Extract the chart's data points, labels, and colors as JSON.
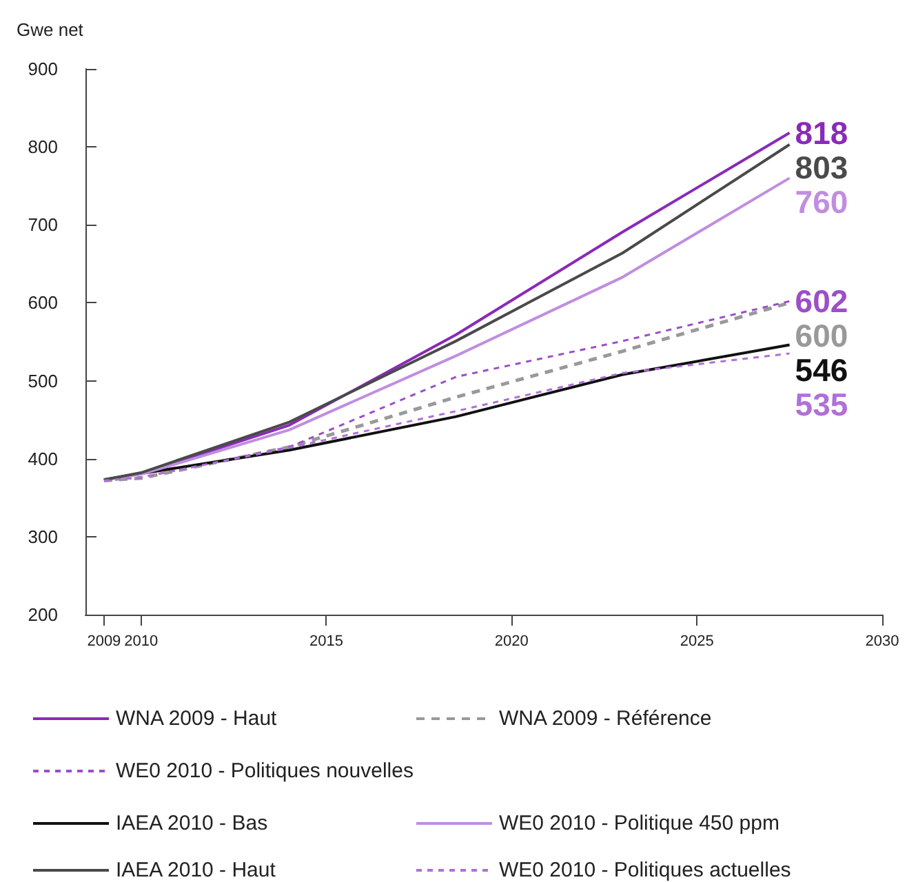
{
  "chart_data": {
    "type": "line",
    "ylabel": "Gwe net",
    "x": [
      2009,
      2010,
      2014,
      2018.5,
      2023,
      2027.5
    ],
    "xlim": [
      2008.5,
      2030
    ],
    "xticks": [
      2009,
      2010,
      2015,
      2020,
      2025,
      2030
    ],
    "ylim": [
      200,
      900
    ],
    "yticks": [
      200,
      300,
      400,
      500,
      600,
      700,
      800,
      900
    ],
    "grid": false,
    "legend": "bottom",
    "marker": "none",
    "series": [
      {
        "name": "WNA 2009 - Haut",
        "color": "#8a2ab8",
        "line_style": "solid",
        "values": [
          373,
          381,
          443,
          559,
          691,
          818
        ],
        "value_labels": [
          null,
          null,
          null,
          null,
          null,
          "818"
        ]
      },
      {
        "name": "WNA 2009 - Référence",
        "color": "#999999",
        "line_style": "dashed",
        "values": [
          372,
          375,
          415,
          479,
          538,
          600
        ],
        "value_labels": [
          null,
          null,
          null,
          null,
          null,
          "600"
        ]
      },
      {
        "name": "WE0 2010 - Politiques nouvelles",
        "color": "#9b4fc8",
        "line_style": "dotted",
        "values": [
          372,
          376,
          415,
          505,
          551,
          602
        ],
        "value_labels": [
          null,
          null,
          null,
          null,
          null,
          "602"
        ]
      },
      {
        "name": "IAEA 2010 - Bas",
        "color": "#111111",
        "line_style": "solid",
        "values": [
          373,
          381,
          411,
          454,
          508,
          546
        ],
        "value_labels": [
          null,
          null,
          null,
          null,
          null,
          "546"
        ]
      },
      {
        "name": "WE0 2010 - Politique 450 ppm",
        "color": "#c08ee0",
        "line_style": "solid",
        "values": [
          373,
          380,
          437,
          532,
          633,
          760
        ],
        "value_labels": [
          null,
          null,
          null,
          null,
          null,
          "760"
        ]
      },
      {
        "name": "IAEA 2010 - Haut",
        "color": "#4a4a4a",
        "line_style": "solid",
        "values": [
          373,
          382,
          447,
          551,
          664,
          803
        ],
        "value_labels": [
          null,
          null,
          null,
          null,
          null,
          "803"
        ]
      },
      {
        "name": "WE0 2010 - Politiques actuelles",
        "color": "#b070d8",
        "line_style": "dotted",
        "values": [
          372,
          376,
          414,
          461,
          510,
          535
        ],
        "value_labels": [
          null,
          null,
          null,
          null,
          null,
          "535"
        ]
      }
    ]
  }
}
